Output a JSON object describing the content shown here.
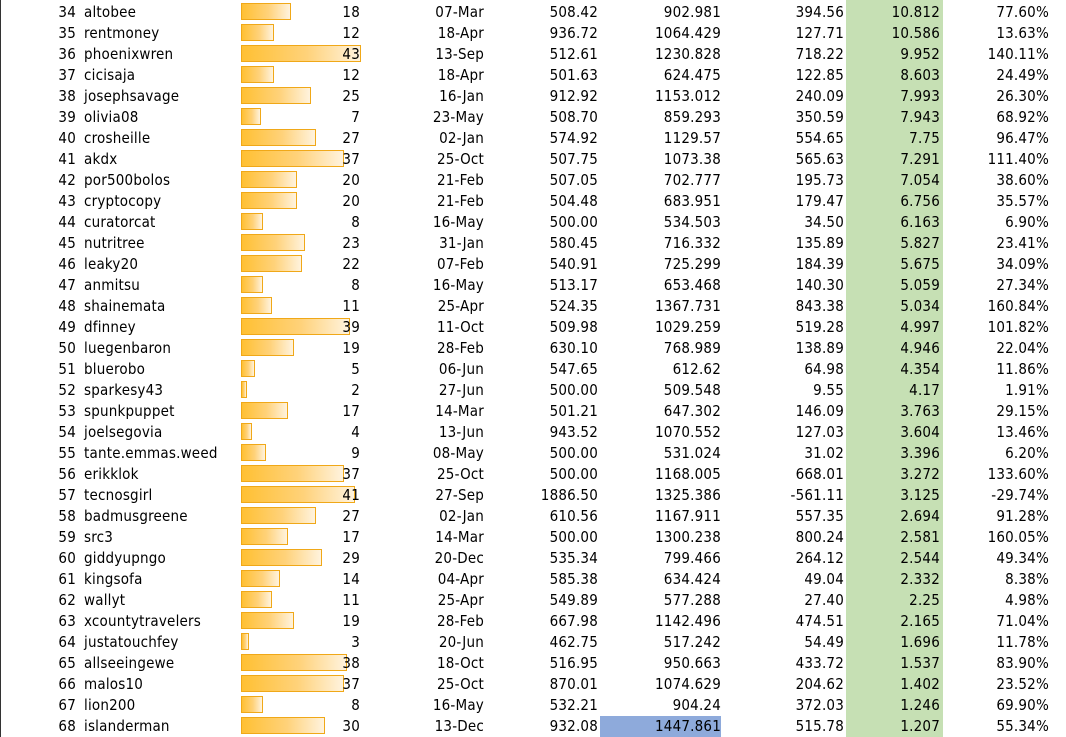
{
  "colors": {
    "bar_fill": "#ffc033",
    "bar_border": "#f0a818",
    "score_column_fill": "#c6e0b4",
    "highlight_cell_fill": "#8eaadb"
  },
  "bar_max": 43,
  "rows": [
    {
      "rank": "34",
      "name": "altobee",
      "count": "18",
      "date": "07-Mar",
      "v1": "508.42",
      "v2": "902.981",
      "v3": "394.56",
      "score": "10.812",
      "pct": "77.60%"
    },
    {
      "rank": "35",
      "name": "rentmoney",
      "count": "12",
      "date": "18-Apr",
      "v1": "936.72",
      "v2": "1064.429",
      "v3": "127.71",
      "score": "10.586",
      "pct": "13.63%"
    },
    {
      "rank": "36",
      "name": "phoenixwren",
      "count": "43",
      "date": "13-Sep",
      "v1": "512.61",
      "v2": "1230.828",
      "v3": "718.22",
      "score": "9.952",
      "pct": "140.11%"
    },
    {
      "rank": "37",
      "name": "cicisaja",
      "count": "12",
      "date": "18-Apr",
      "v1": "501.63",
      "v2": "624.475",
      "v3": "122.85",
      "score": "8.603",
      "pct": "24.49%"
    },
    {
      "rank": "38",
      "name": "josephsavage",
      "count": "25",
      "date": "16-Jan",
      "v1": "912.92",
      "v2": "1153.012",
      "v3": "240.09",
      "score": "7.993",
      "pct": "26.30%"
    },
    {
      "rank": "39",
      "name": "olivia08",
      "count": "7",
      "date": "23-May",
      "v1": "508.70",
      "v2": "859.293",
      "v3": "350.59",
      "score": "7.943",
      "pct": "68.92%"
    },
    {
      "rank": "40",
      "name": "crosheille",
      "count": "27",
      "date": "02-Jan",
      "v1": "574.92",
      "v2": "1129.57",
      "v3": "554.65",
      "score": "7.75",
      "pct": "96.47%"
    },
    {
      "rank": "41",
      "name": "akdx",
      "count": "37",
      "date": "25-Oct",
      "v1": "507.75",
      "v2": "1073.38",
      "v3": "565.63",
      "score": "7.291",
      "pct": "111.40%"
    },
    {
      "rank": "42",
      "name": "por500bolos",
      "count": "20",
      "date": "21-Feb",
      "v1": "507.05",
      "v2": "702.777",
      "v3": "195.73",
      "score": "7.054",
      "pct": "38.60%"
    },
    {
      "rank": "43",
      "name": "cryptocopy",
      "count": "20",
      "date": "21-Feb",
      "v1": "504.48",
      "v2": "683.951",
      "v3": "179.47",
      "score": "6.756",
      "pct": "35.57%"
    },
    {
      "rank": "44",
      "name": "curatorcat",
      "count": "8",
      "date": "16-May",
      "v1": "500.00",
      "v2": "534.503",
      "v3": "34.50",
      "score": "6.163",
      "pct": "6.90%"
    },
    {
      "rank": "45",
      "name": "nutritree",
      "count": "23",
      "date": "31-Jan",
      "v1": "580.45",
      "v2": "716.332",
      "v3": "135.89",
      "score": "5.827",
      "pct": "23.41%"
    },
    {
      "rank": "46",
      "name": "leaky20",
      "count": "22",
      "date": "07-Feb",
      "v1": "540.91",
      "v2": "725.299",
      "v3": "184.39",
      "score": "5.675",
      "pct": "34.09%"
    },
    {
      "rank": "47",
      "name": "anmitsu",
      "count": "8",
      "date": "16-May",
      "v1": "513.17",
      "v2": "653.468",
      "v3": "140.30",
      "score": "5.059",
      "pct": "27.34%"
    },
    {
      "rank": "48",
      "name": "shainemata",
      "count": "11",
      "date": "25-Apr",
      "v1": "524.35",
      "v2": "1367.731",
      "v3": "843.38",
      "score": "5.034",
      "pct": "160.84%"
    },
    {
      "rank": "49",
      "name": "dfinney",
      "count": "39",
      "date": "11-Oct",
      "v1": "509.98",
      "v2": "1029.259",
      "v3": "519.28",
      "score": "4.997",
      "pct": "101.82%"
    },
    {
      "rank": "50",
      "name": "luegenbaron",
      "count": "19",
      "date": "28-Feb",
      "v1": "630.10",
      "v2": "768.989",
      "v3": "138.89",
      "score": "4.946",
      "pct": "22.04%"
    },
    {
      "rank": "51",
      "name": "bluerobo",
      "count": "5",
      "date": "06-Jun",
      "v1": "547.65",
      "v2": "612.62",
      "v3": "64.98",
      "score": "4.354",
      "pct": "11.86%"
    },
    {
      "rank": "52",
      "name": "sparkesy43",
      "count": "2",
      "date": "27-Jun",
      "v1": "500.00",
      "v2": "509.548",
      "v3": "9.55",
      "score": "4.17",
      "pct": "1.91%"
    },
    {
      "rank": "53",
      "name": "spunkpuppet",
      "count": "17",
      "date": "14-Mar",
      "v1": "501.21",
      "v2": "647.302",
      "v3": "146.09",
      "score": "3.763",
      "pct": "29.15%"
    },
    {
      "rank": "54",
      "name": "joelsegovia",
      "count": "4",
      "date": "13-Jun",
      "v1": "943.52",
      "v2": "1070.552",
      "v3": "127.03",
      "score": "3.604",
      "pct": "13.46%"
    },
    {
      "rank": "55",
      "name": "tante.emmas.weed",
      "count": "9",
      "date": "08-May",
      "v1": "500.00",
      "v2": "531.024",
      "v3": "31.02",
      "score": "3.396",
      "pct": "6.20%"
    },
    {
      "rank": "56",
      "name": "erikklok",
      "count": "37",
      "date": "25-Oct",
      "v1": "500.00",
      "v2": "1168.005",
      "v3": "668.01",
      "score": "3.272",
      "pct": "133.60%"
    },
    {
      "rank": "57",
      "name": "tecnosgirl",
      "count": "41",
      "date": "27-Sep",
      "v1": "1886.50",
      "v2": "1325.386",
      "v3": "-561.11",
      "score": "3.125",
      "pct": "-29.74%"
    },
    {
      "rank": "58",
      "name": "badmusgreene",
      "count": "27",
      "date": "02-Jan",
      "v1": "610.56",
      "v2": "1167.911",
      "v3": "557.35",
      "score": "2.694",
      "pct": "91.28%"
    },
    {
      "rank": "59",
      "name": "src3",
      "count": "17",
      "date": "14-Mar",
      "v1": "500.00",
      "v2": "1300.238",
      "v3": "800.24",
      "score": "2.581",
      "pct": "160.05%"
    },
    {
      "rank": "60",
      "name": "giddyupngo",
      "count": "29",
      "date": "20-Dec",
      "v1": "535.34",
      "v2": "799.466",
      "v3": "264.12",
      "score": "2.544",
      "pct": "49.34%"
    },
    {
      "rank": "61",
      "name": "kingsofa",
      "count": "14",
      "date": "04-Apr",
      "v1": "585.38",
      "v2": "634.424",
      "v3": "49.04",
      "score": "2.332",
      "pct": "8.38%"
    },
    {
      "rank": "62",
      "name": "wallyt",
      "count": "11",
      "date": "25-Apr",
      "v1": "549.89",
      "v2": "577.288",
      "v3": "27.40",
      "score": "2.25",
      "pct": "4.98%"
    },
    {
      "rank": "63",
      "name": "xcountytravelers",
      "count": "19",
      "date": "28-Feb",
      "v1": "667.98",
      "v2": "1142.496",
      "v3": "474.51",
      "score": "2.165",
      "pct": "71.04%"
    },
    {
      "rank": "64",
      "name": "justatouchfey",
      "count": "3",
      "date": "20-Jun",
      "v1": "462.75",
      "v2": "517.242",
      "v3": "54.49",
      "score": "1.696",
      "pct": "11.78%"
    },
    {
      "rank": "65",
      "name": "allseeingewe",
      "count": "38",
      "date": "18-Oct",
      "v1": "516.95",
      "v2": "950.663",
      "v3": "433.72",
      "score": "1.537",
      "pct": "83.90%"
    },
    {
      "rank": "66",
      "name": "malos10",
      "count": "37",
      "date": "25-Oct",
      "v1": "870.01",
      "v2": "1074.629",
      "v3": "204.62",
      "score": "1.402",
      "pct": "23.52%"
    },
    {
      "rank": "67",
      "name": "lion200",
      "count": "8",
      "date": "16-May",
      "v1": "532.21",
      "v2": "904.24",
      "v3": "372.03",
      "score": "1.246",
      "pct": "69.90%"
    },
    {
      "rank": "68",
      "name": "islanderman",
      "count": "30",
      "date": "13-Dec",
      "v1": "932.08",
      "v2": "1447.861",
      "v3": "515.78",
      "score": "1.207",
      "pct": "55.34%",
      "v2_highlight": true
    }
  ]
}
